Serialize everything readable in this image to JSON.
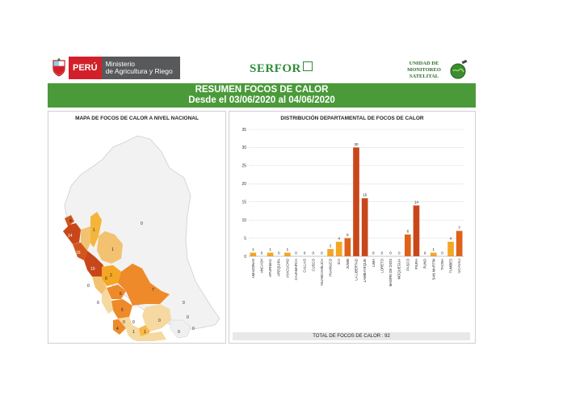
{
  "header": {
    "country_label": "PERÚ",
    "ministry_line1": "Ministerio",
    "ministry_line2": "de Agricultura y Riego",
    "agency_logo_text": "SERFOR",
    "unit_line1": "UNIDAD DE",
    "unit_line2": "MONITOREO",
    "unit_line3": "SATELITAL"
  },
  "title_line1": "RESUMEN FOCOS DE CALOR",
  "title_line2": "Desde el 03/06/2020 al 04/06/2020",
  "map_title": "MAPA DE FOCOS DE CALOR A NIVEL NACIONAL",
  "map_values": [
    "4",
    "14",
    "16",
    "1",
    "1",
    "10",
    "0",
    "0",
    "0",
    "2",
    "6",
    "7",
    "0",
    "5",
    "0",
    "0",
    "4",
    "1",
    "1",
    "0",
    "0",
    "0",
    "0",
    "0"
  ],
  "colors": {
    "title_band": "#4a9a3a",
    "bar_light": "#f5a623",
    "bar_dark": "#e0621a",
    "bar_darkest": "#c8471a",
    "map_pale": "#f5d9a0",
    "map_light": "#f7b84b",
    "map_mid": "#ee8a2a",
    "map_dark": "#d2561c"
  },
  "chart_data": {
    "type": "bar",
    "title": "DISTRIBUCIÓN DEPARTAMENTAL DE FOCOS DE CALOR",
    "categories": [
      "AMAZONAS",
      "ANCASH",
      "APURIMAC",
      "AREQUIPA",
      "AYACUCHO",
      "CAJAMARCA",
      "CALLAO",
      "CUSCO",
      "HUANCAVELICA",
      "HUANUCO",
      "ICA",
      "JUNIN",
      "LA LIBERTAD",
      "LAMBAYEQUE",
      "LIMA",
      "LORETO",
      "MADRE DE DIOS",
      "MOQUEGUA",
      "PASCO",
      "PIURA",
      "PUNO",
      "SAN MARTIN",
      "TACNA",
      "TUMBES",
      "UCAYALI"
    ],
    "values": [
      1,
      0,
      1,
      0,
      1,
      0,
      0,
      0,
      0,
      2,
      4,
      5,
      30,
      16,
      0,
      0,
      0,
      0,
      6,
      14,
      0,
      1,
      0,
      4,
      7
    ],
    "ylim": [
      0,
      35
    ],
    "yticks": [
      0,
      5,
      10,
      15,
      20,
      25,
      30,
      35
    ],
    "grid": true,
    "xlabel": "",
    "ylabel": "",
    "total_label": "TOTAL DE FOCOS DE CALOR : 92"
  }
}
